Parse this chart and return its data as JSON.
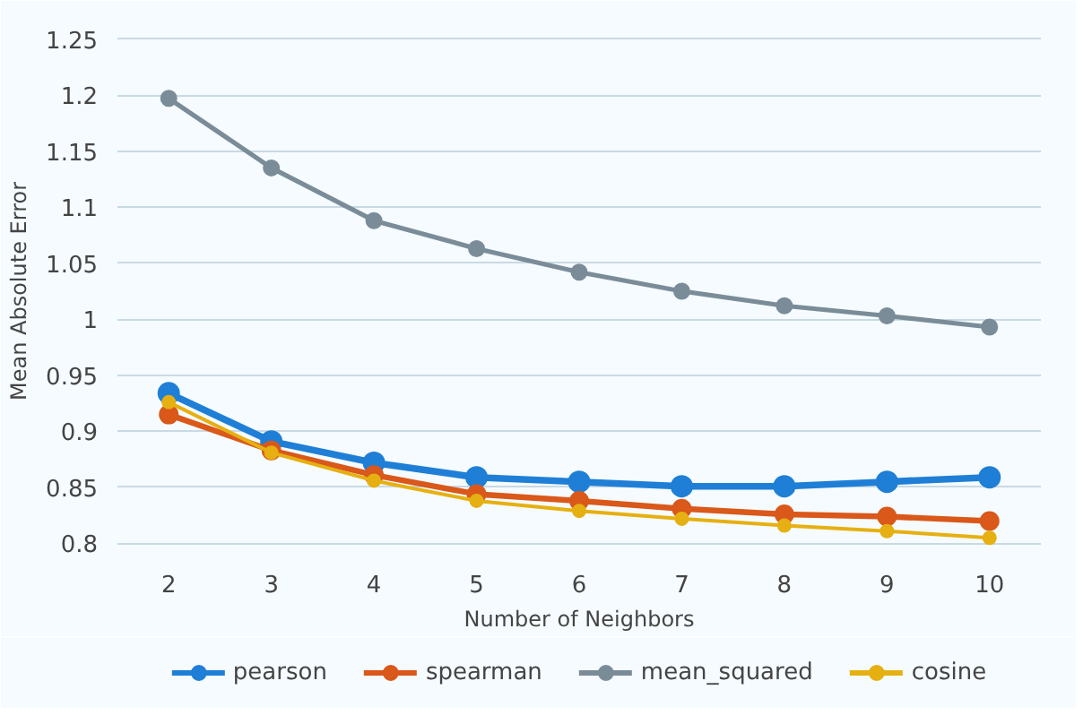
{
  "chart_data": {
    "type": "line",
    "xlabel": "Number of Neighbors",
    "ylabel": "Mean Absolute Error",
    "categories": [
      "2",
      "3",
      "4",
      "5",
      "6",
      "7",
      "8",
      "9",
      "10"
    ],
    "ylim": [
      0.79,
      1.26
    ],
    "yticks": [
      {
        "value": 0.8,
        "label": "0.8"
      },
      {
        "value": 0.85,
        "label": "0.85"
      },
      {
        "value": 0.9,
        "label": "0.9"
      },
      {
        "value": 0.95,
        "label": "0.95"
      },
      {
        "value": 1,
        "label": "1"
      },
      {
        "value": 1.05,
        "label": "1.05"
      },
      {
        "value": 1.1,
        "label": "1.1"
      },
      {
        "value": 1.15,
        "label": "1.15"
      },
      {
        "value": 1.2,
        "label": "1.2"
      },
      {
        "value": 1.25,
        "label": "1.25"
      }
    ],
    "grid": "y",
    "legend": "bottom",
    "marker": "circle",
    "line_style": "solid",
    "series": [
      {
        "name": "pearson",
        "color": "#1f7fd6",
        "values": [
          0.934,
          0.891,
          0.872,
          0.859,
          0.855,
          0.851,
          0.851,
          0.855,
          0.859
        ]
      },
      {
        "name": "spearman",
        "color": "#d9581a",
        "values": [
          0.915,
          0.883,
          0.861,
          0.844,
          0.838,
          0.831,
          0.826,
          0.824,
          0.82
        ]
      },
      {
        "name": "mean_squared",
        "color": "#7b8c99",
        "values": [
          1.197,
          1.135,
          1.088,
          1.063,
          1.042,
          1.025,
          1.012,
          1.003,
          0.993
        ]
      },
      {
        "name": "cosine",
        "color": "#e6b012",
        "values": [
          0.926,
          0.881,
          0.856,
          0.838,
          0.829,
          0.822,
          0.816,
          0.811,
          0.805
        ]
      }
    ]
  }
}
